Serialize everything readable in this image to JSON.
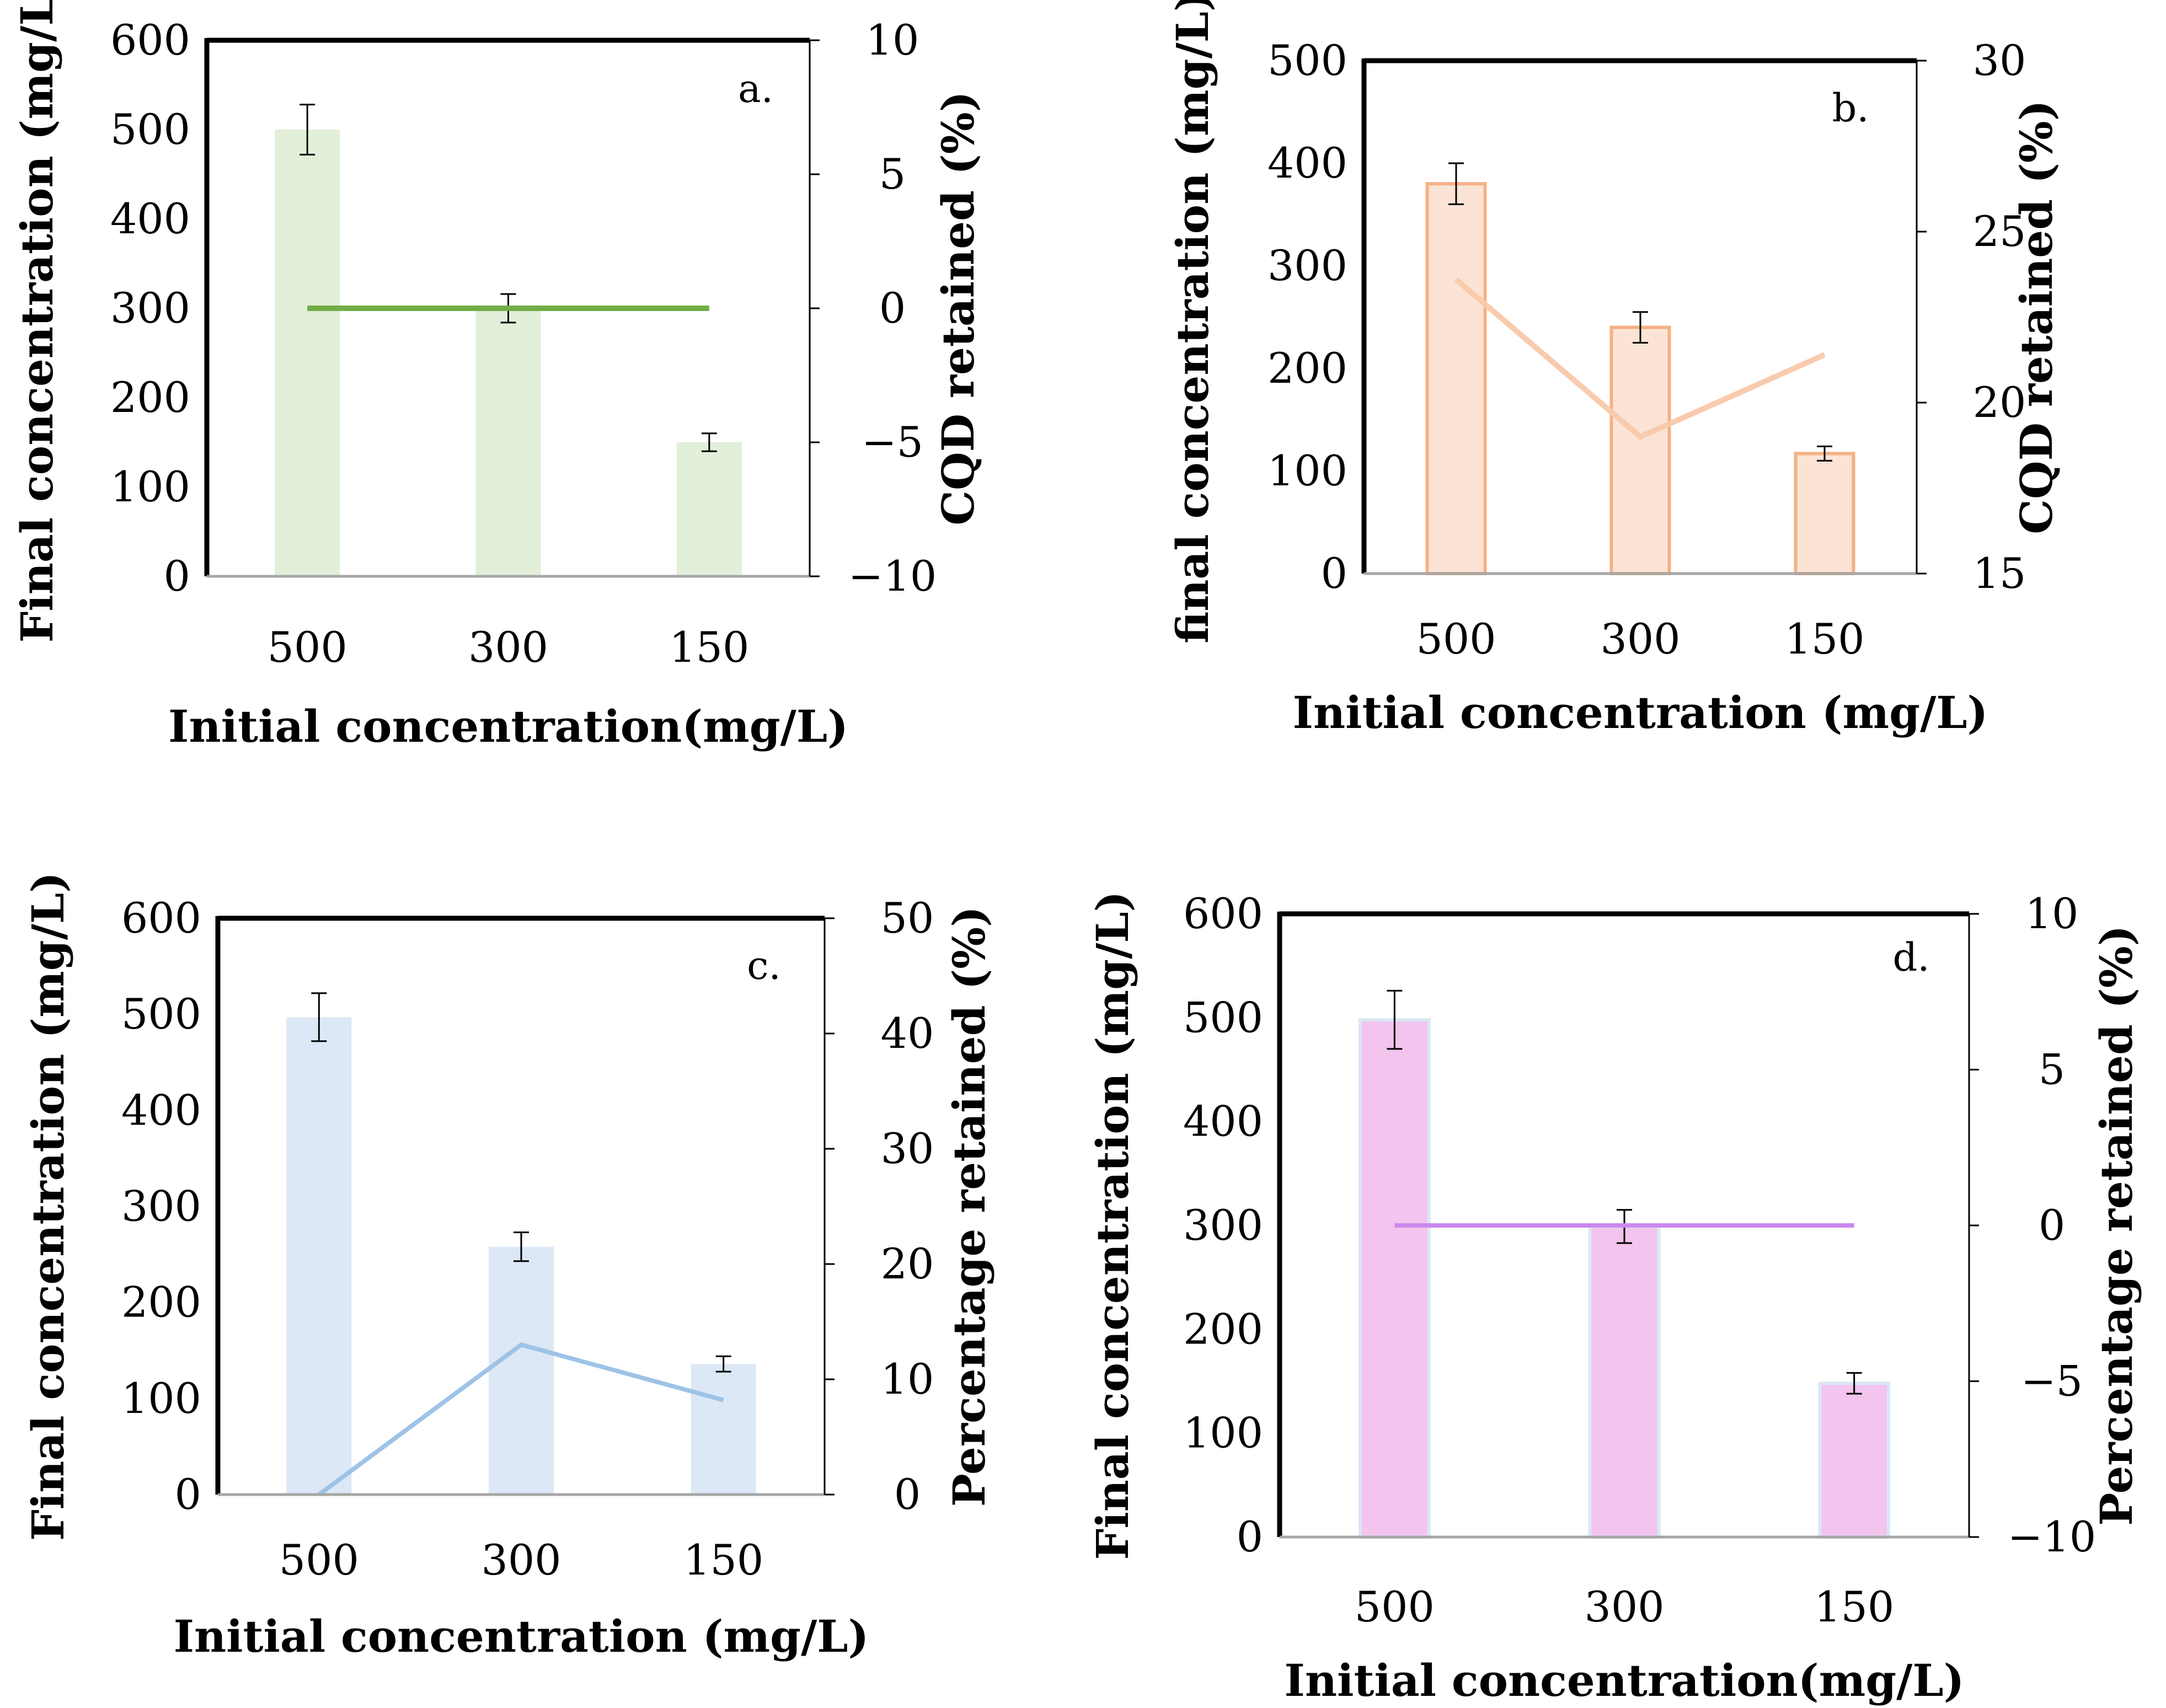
{
  "chart_data": [
    {
      "type": "bar",
      "panel": "a.",
      "categories": [
        "500",
        "300",
        "150"
      ],
      "bar_values": [
        500,
        300,
        150
      ],
      "bar_errors": [
        28,
        16,
        10
      ],
      "line_values": [
        0,
        0,
        0
      ],
      "xlabel": "Initial concentration(mg/L)",
      "ylabel": "Final concentration (mg/L)",
      "y2label": "CQD retained (%)",
      "ylim": [
        0,
        600
      ],
      "yticks": [
        0,
        100,
        200,
        300,
        400,
        500,
        600
      ],
      "y2lim": [
        -10,
        10
      ],
      "y2ticks": [
        10,
        5,
        0,
        -5,
        -10
      ],
      "y2tick_labels": [
        "10",
        "5",
        "0",
        "−5",
        "−10"
      ],
      "bar_color": "#e2efd9",
      "line_color": "#70ad47"
    },
    {
      "type": "bar",
      "panel": "b.",
      "categories": [
        "500",
        "300",
        "150"
      ],
      "bar_values": [
        380,
        240,
        117
      ],
      "bar_errors": [
        20,
        15,
        7
      ],
      "line_values": [
        23.6,
        19,
        21.4
      ],
      "xlabel": "Initial concentration (mg/L)",
      "ylabel": "final concentration (mg/L)",
      "y2label": "CQD retained (%)",
      "ylim": [
        0,
        500
      ],
      "yticks": [
        0,
        100,
        200,
        300,
        400,
        500
      ],
      "y2lim": [
        15,
        30
      ],
      "y2ticks": [
        30,
        25,
        20,
        15
      ],
      "y2tick_labels": [
        "30",
        "25",
        "20",
        "15"
      ],
      "bar_color": "#fbe4d5",
      "bar_edge": "#f4b183",
      "line_color": "#f8cbad"
    },
    {
      "type": "bar",
      "panel": "c.",
      "categories": [
        "500",
        "300",
        "150"
      ],
      "bar_values": [
        497,
        258,
        136
      ],
      "bar_errors": [
        25,
        15,
        8
      ],
      "line_values": [
        0,
        13,
        8.2
      ],
      "xlabel": "Initial concentration (mg/L)",
      "ylabel": "Final concentration (mg/L)",
      "y2label": "Percentage retained (%)",
      "ylim": [
        0,
        600
      ],
      "yticks": [
        0,
        100,
        200,
        300,
        400,
        500,
        600
      ],
      "y2lim": [
        0,
        50
      ],
      "y2ticks": [
        50,
        40,
        30,
        20,
        10,
        0
      ],
      "y2tick_labels": [
        "50",
        "40",
        "30",
        "20",
        "10",
        "0"
      ],
      "bar_color": "#dce8f5",
      "line_color": "#9dc3e6"
    },
    {
      "type": "bar",
      "panel": "d.",
      "categories": [
        "500",
        "300",
        "150"
      ],
      "bar_values": [
        498,
        299,
        148
      ],
      "bar_errors": [
        28,
        16,
        10
      ],
      "line_values": [
        0,
        0,
        0
      ],
      "xlabel": "Initial concentration(mg/L)",
      "ylabel": "Final concentration (mg/L)",
      "y2label": "Percentage retained (%)",
      "ylim": [
        0,
        600
      ],
      "yticks": [
        0,
        100,
        200,
        300,
        400,
        500,
        600
      ],
      "y2lim": [
        -10,
        10
      ],
      "y2ticks": [
        10,
        5,
        0,
        -5,
        -10
      ],
      "y2tick_labels": [
        "10",
        "5",
        "0",
        "−5",
        "−10"
      ],
      "bar_color": "#f2c4ee",
      "bar_edge": "#dae8f5",
      "line_color": "#cc88ee"
    }
  ]
}
